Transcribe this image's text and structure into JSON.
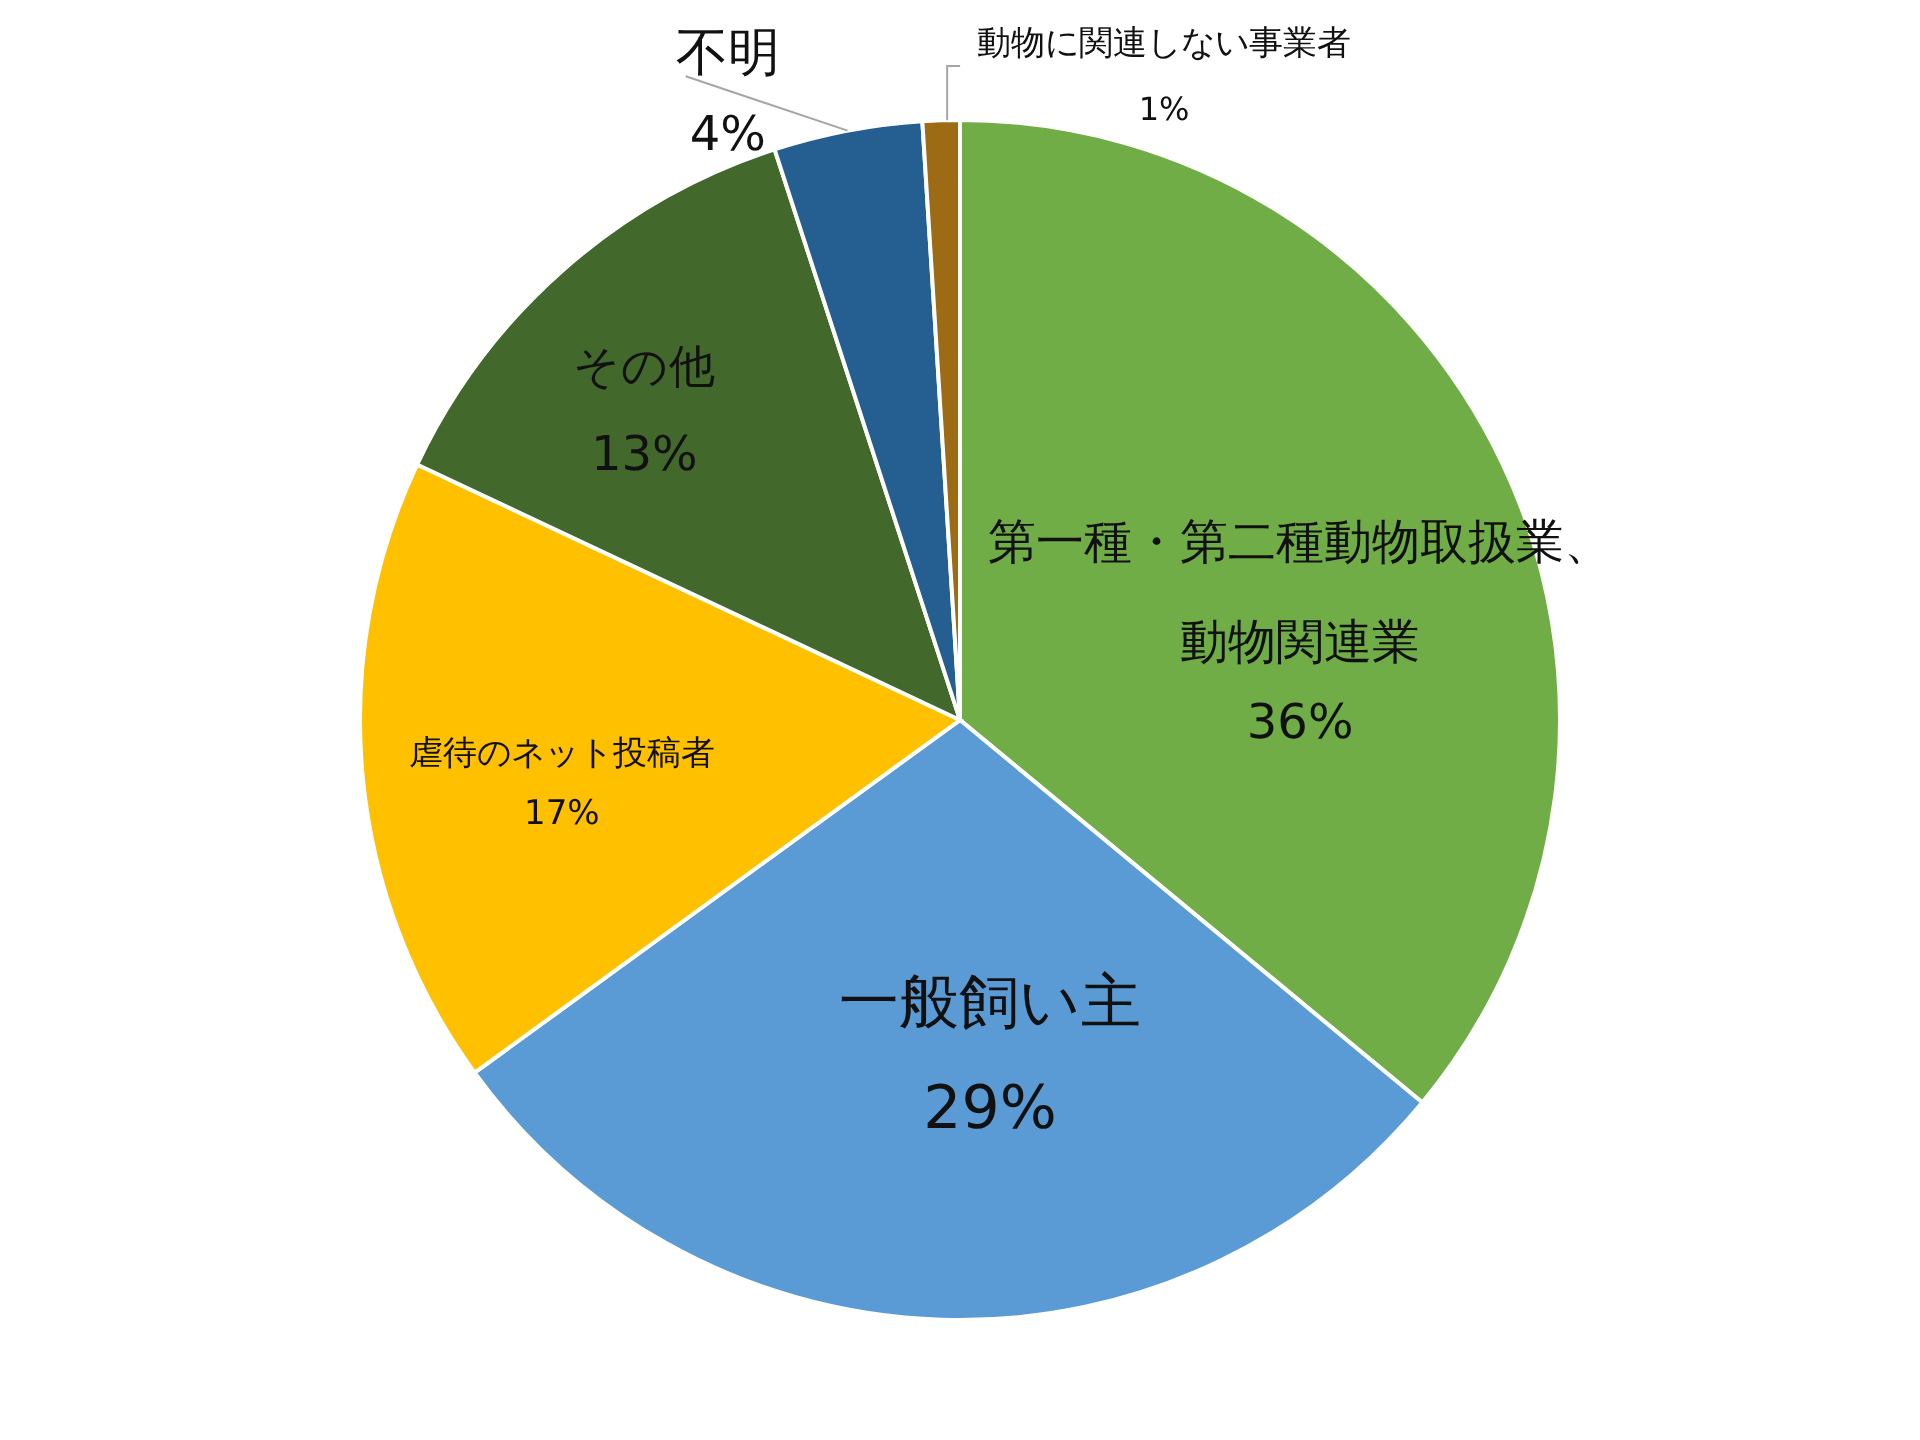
{
  "chart_data": {
    "type": "pie",
    "categories": [
      "第一種・第二種動物取扱業、動物関連業",
      "一般飼い主",
      "虐待のネット投稿者",
      "その他",
      "不明",
      "動物に関連しない事業者"
    ],
    "values": [
      36,
      29,
      17,
      13,
      4,
      1
    ],
    "colors": [
      "#70ad47",
      "#5b9bd5",
      "#ffc000",
      "#43682b",
      "#255e91",
      "#9c6b13"
    ],
    "value_labels": [
      "36%",
      "29%",
      "17%",
      "13%",
      "4%",
      "1%"
    ]
  }
}
